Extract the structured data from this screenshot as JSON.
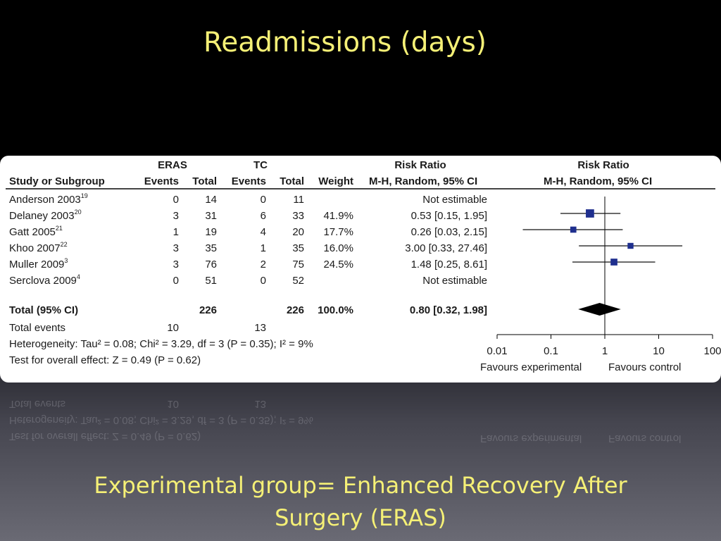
{
  "slide": {
    "title": "Readmissions (days)",
    "caption_line1": "Experimental group= Enhanced Recovery After",
    "caption_line2": "Surgery (ERAS)"
  },
  "colors": {
    "title_text": "#f5f076",
    "marker": "#1f2f8e",
    "diamond": "#000000",
    "card": "#ffffff"
  },
  "table": {
    "group_headers": {
      "experimental": "ERAS",
      "control": "TC",
      "rr_text": "Risk Ratio",
      "rr_plot": "Risk Ratio"
    },
    "columns": {
      "study": "Study or Subgroup",
      "events_e": "Events",
      "total_e": "Total",
      "events_c": "Events",
      "total_c": "Total",
      "weight": "Weight",
      "rr_text": "M-H, Random, 95% CI",
      "rr_plot": "M-H, Random, 95% CI"
    },
    "rows": [
      {
        "study": "Anderson 2003",
        "ref": "19",
        "events_e": "0",
        "total_e": "14",
        "events_c": "0",
        "total_c": "11",
        "weight": "",
        "rr": "Not estimable"
      },
      {
        "study": "Delaney 2003",
        "ref": "20",
        "events_e": "3",
        "total_e": "31",
        "events_c": "6",
        "total_c": "33",
        "weight": "41.9%",
        "rr": "0.53 [0.15, 1.95]"
      },
      {
        "study": "Gatt 2005",
        "ref": "21",
        "events_e": "1",
        "total_e": "19",
        "events_c": "4",
        "total_c": "20",
        "weight": "17.7%",
        "rr": "0.26 [0.03, 2.15]"
      },
      {
        "study": "Khoo 2007",
        "ref": "22",
        "events_e": "3",
        "total_e": "35",
        "events_c": "1",
        "total_c": "35",
        "weight": "16.0%",
        "rr": "3.00 [0.33, 27.46]"
      },
      {
        "study": "Muller 2009",
        "ref": "3",
        "events_e": "3",
        "total_e": "76",
        "events_c": "2",
        "total_c": "75",
        "weight": "24.5%",
        "rr": "1.48 [0.25, 8.61]"
      },
      {
        "study": "Serclova 2009",
        "ref": "4",
        "events_e": "0",
        "total_e": "51",
        "events_c": "0",
        "total_c": "52",
        "weight": "",
        "rr": "Not estimable"
      }
    ],
    "total": {
      "label": "Total (95% CI)",
      "total_e": "226",
      "total_c": "226",
      "weight": "100.0%",
      "rr": "0.80 [0.32, 1.98]"
    },
    "total_events": {
      "label": "Total events",
      "events_e": "10",
      "events_c": "13"
    },
    "heterogeneity": "Heterogeneity: Tau² = 0.08; Chi² = 3.29, df = 3 (P = 0.35); I² = 9%",
    "overall_effect": "Test for overall effect: Z = 0.49 (P = 0.62)"
  },
  "chart_data": {
    "type": "forest",
    "scale": "log",
    "xlim": [
      0.01,
      100
    ],
    "null_line": 1,
    "ticks": [
      "0.01",
      "0.1",
      "1",
      "10",
      "100"
    ],
    "tick_values": [
      0.01,
      0.1,
      1,
      10,
      100
    ],
    "favours_left": "Favours experimental",
    "favours_right": "Favours control",
    "studies": [
      {
        "study": "Delaney 2003",
        "rr": 0.53,
        "lo": 0.15,
        "hi": 1.95,
        "weight": 41.9
      },
      {
        "study": "Gatt 2005",
        "rr": 0.26,
        "lo": 0.03,
        "hi": 2.15,
        "weight": 17.7
      },
      {
        "study": "Khoo 2007",
        "rr": 3.0,
        "lo": 0.33,
        "hi": 27.46,
        "weight": 16.0
      },
      {
        "study": "Muller 2009",
        "rr": 1.48,
        "lo": 0.25,
        "hi": 8.61,
        "weight": 24.5
      }
    ],
    "pooled": {
      "rr": 0.8,
      "lo": 0.32,
      "hi": 1.98
    }
  }
}
